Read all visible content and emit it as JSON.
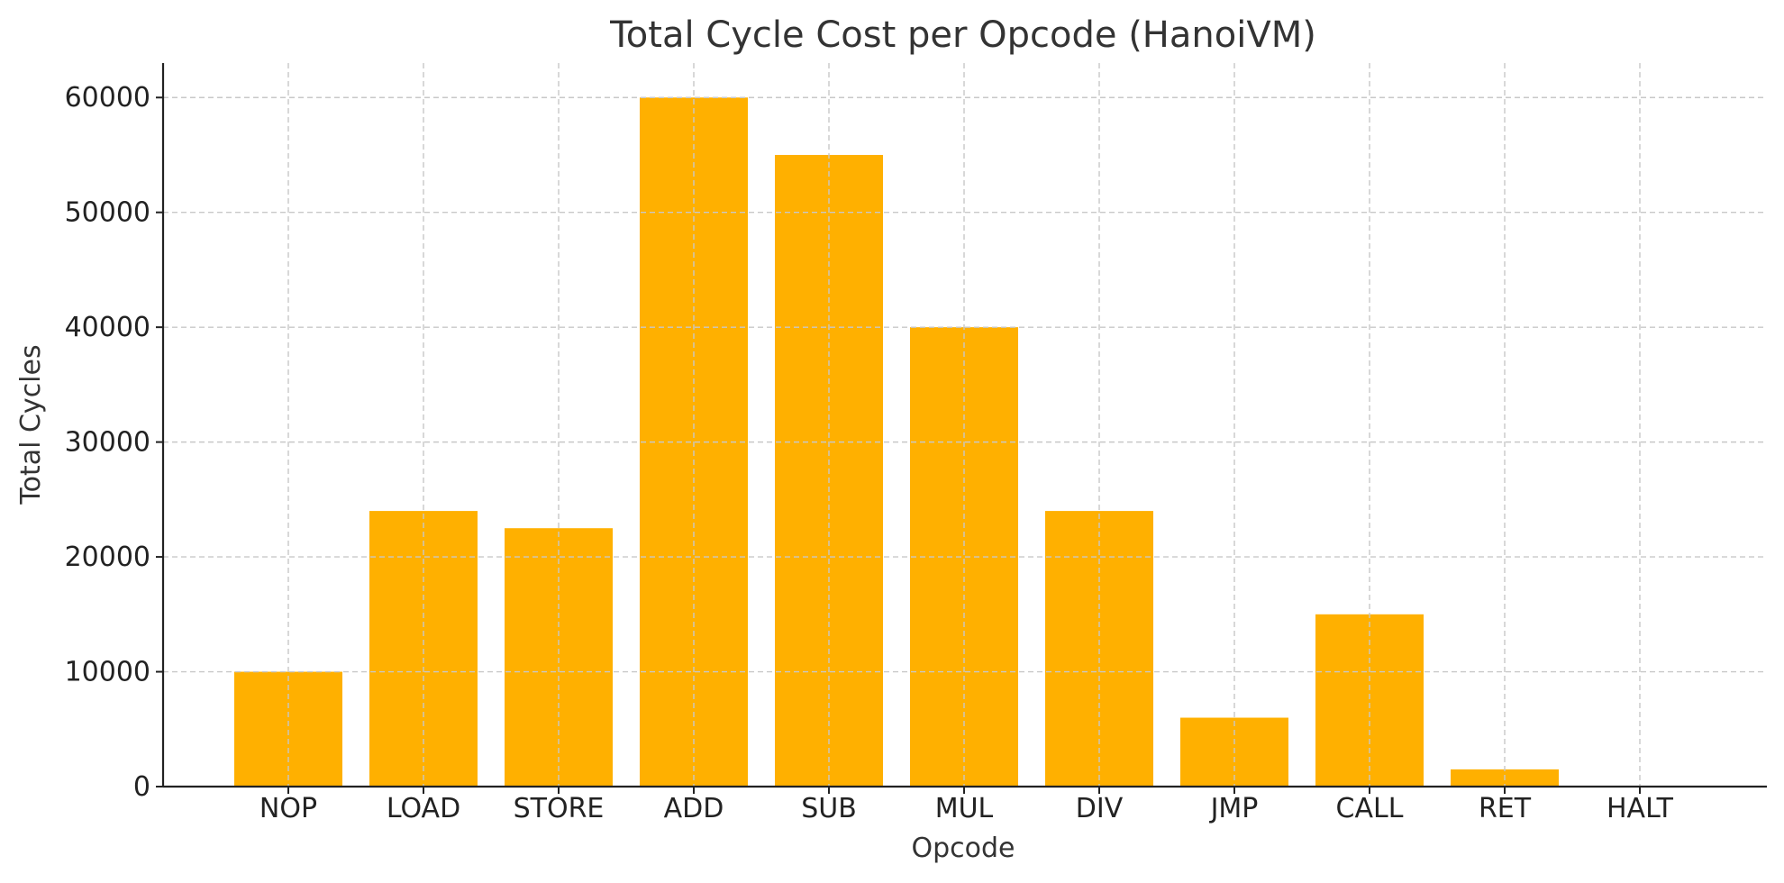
{
  "chart_data": {
    "type": "bar",
    "title": "Total Cycle Cost per Opcode (HanoiVM)",
    "xlabel": "Opcode",
    "ylabel": "Total Cycles",
    "categories": [
      "NOP",
      "LOAD",
      "STORE",
      "ADD",
      "SUB",
      "MUL",
      "DIV",
      "JMP",
      "CALL",
      "RET",
      "HALT"
    ],
    "values": [
      10000,
      24000,
      22500,
      60000,
      55000,
      40000,
      24000,
      6000,
      15000,
      1500,
      0
    ],
    "ylim": [
      0,
      63000
    ],
    "yticks": [
      0,
      10000,
      20000,
      30000,
      40000,
      50000,
      60000
    ],
    "grid": true,
    "bar_color": "#FFB000"
  }
}
